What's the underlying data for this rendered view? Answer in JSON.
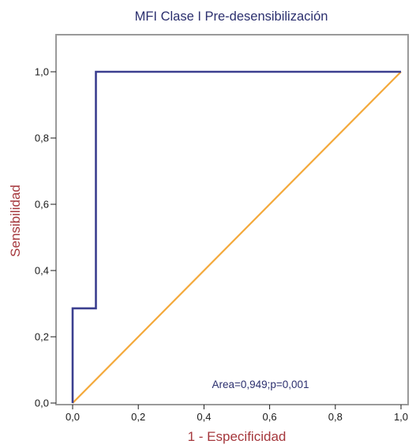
{
  "chart_data": {
    "type": "line",
    "title": "MFI Clase I Pre-desensibilización",
    "xlabel": "1 - Especificidad",
    "ylabel": "Sensibilidad",
    "xlim": [
      0,
      1
    ],
    "ylim": [
      0,
      1.08
    ],
    "x_ticks": [
      "0,0",
      "0,2",
      "0,4",
      "0,6",
      "0,8",
      "1,0"
    ],
    "y_ticks": [
      "0,0",
      "0,2",
      "0,4",
      "0,6",
      "0,8",
      "1,0"
    ],
    "grid": false,
    "series": [
      {
        "role": "roc-curve",
        "color": "#3b3f8f",
        "step": true,
        "points": [
          [
            0,
            0
          ],
          [
            0,
            0.286
          ],
          [
            0.071,
            0.286
          ],
          [
            0.071,
            1.0
          ],
          [
            1.0,
            1.0
          ]
        ]
      },
      {
        "role": "reference-line",
        "color": "#f4a93b",
        "step": false,
        "points": [
          [
            0,
            0
          ],
          [
            1.0,
            1.0
          ]
        ]
      }
    ],
    "annotation": "Area=0,949;p=0,001",
    "colors": {
      "title": "#2b2f6e",
      "axis_label": "#a5373c",
      "annotation": "#2b2f6e",
      "frame": "#9a9a9a",
      "ticks": "#1a1a1a"
    }
  }
}
